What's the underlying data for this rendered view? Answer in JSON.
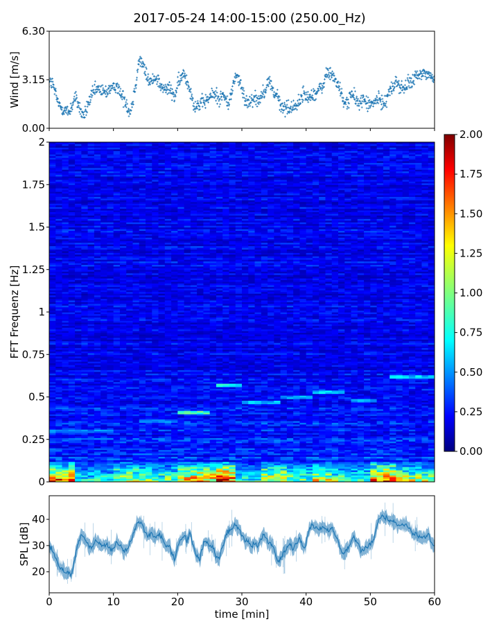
{
  "figure": {
    "title": "2017-05-24 14:00-15:00 (250.00_Hz)"
  },
  "chart_data": [
    {
      "type": "scatter",
      "panel": "wind",
      "title": "",
      "xlabel": "",
      "ylabel": "Wind [m/s]",
      "xlim": [
        0,
        60
      ],
      "ylim": [
        0,
        6.3
      ],
      "yticks": [
        0,
        3.15,
        6.3
      ],
      "ytick_labels": [
        "0.00",
        "3.15",
        "6.30"
      ],
      "marker": "+",
      "color": "#1f77b4",
      "trend_x": [
        0,
        0.5,
        1,
        1.5,
        2,
        2.5,
        3,
        3.5,
        4,
        4.5,
        5,
        5.5,
        6,
        6.5,
        7,
        7.5,
        8,
        8.5,
        9,
        9.5,
        10,
        10.5,
        11,
        11.5,
        12,
        12.5,
        13,
        13.5,
        14,
        14.5,
        15,
        15.5,
        16,
        16.5,
        17,
        17.5,
        18,
        18.5,
        19,
        19.5,
        20,
        20.5,
        21,
        21.5,
        22,
        22.5,
        23,
        23.5,
        24,
        24.5,
        25,
        25.5,
        26,
        26.5,
        27,
        27.5,
        28,
        28.5,
        29,
        29.5,
        30,
        30.5,
        31,
        31.5,
        32,
        32.5,
        33,
        33.5,
        34,
        34.5,
        35,
        35.5,
        36,
        36.5,
        37,
        37.5,
        38,
        38.5,
        39,
        39.5,
        40,
        40.5,
        41,
        41.5,
        42,
        42.5,
        43,
        43.5,
        44,
        44.5,
        45,
        45.5,
        46,
        46.5,
        47,
        47.5,
        48,
        48.5,
        49,
        49.5,
        50,
        50.5,
        51,
        51.5,
        52,
        52.5,
        53,
        53.5,
        54,
        54.5,
        55,
        55.5,
        56,
        56.5,
        57,
        57.5,
        58,
        58.5,
        59,
        59.5,
        60
      ],
      "trend_y": [
        3.0,
        2.9,
        2.2,
        1.5,
        1.3,
        1.2,
        1.0,
        1.4,
        2.0,
        1.6,
        1.0,
        0.8,
        1.5,
        2.0,
        2.4,
        2.5,
        2.5,
        2.3,
        2.4,
        2.6,
        2.5,
        2.9,
        2.3,
        2.0,
        1.7,
        1.0,
        1.7,
        3.0,
        4.5,
        4.2,
        3.6,
        3.1,
        3.0,
        3.4,
        3.1,
        2.6,
        2.5,
        2.6,
        2.4,
        2.0,
        2.8,
        3.2,
        3.6,
        3.0,
        2.5,
        1.5,
        1.5,
        1.5,
        1.7,
        1.8,
        2.0,
        2.2,
        2.2,
        1.9,
        2.2,
        1.8,
        1.6,
        2.5,
        3.5,
        3.2,
        2.5,
        1.8,
        1.7,
        1.9,
        2.0,
        1.8,
        2.1,
        2.5,
        2.9,
        3.0,
        2.2,
        2.2,
        1.4,
        1.3,
        1.4,
        1.2,
        1.5,
        1.5,
        1.7,
        2.3,
        2.0,
        2.0,
        2.3,
        2.2,
        2.5,
        2.6,
        3.4,
        3.6,
        3.5,
        3.2,
        2.8,
        2.2,
        1.5,
        1.8,
        2.2,
        2.0,
        1.7,
        1.7,
        1.9,
        1.6,
        1.5,
        1.6,
        1.9,
        1.8,
        1.6,
        1.9,
        2.5,
        2.5,
        3.2,
        2.7,
        2.6,
        2.6,
        3.0,
        3.0,
        3.3,
        3.4,
        3.5,
        3.6,
        3.5,
        3.3,
        3.3
      ]
    },
    {
      "type": "heatmap",
      "panel": "spectrogram",
      "title": "",
      "xlabel": "",
      "ylabel": "FFT Frequenz [Hz]",
      "xlim": [
        0,
        60
      ],
      "ylim": [
        0,
        2
      ],
      "yticks": [
        0,
        0.25,
        0.5,
        0.75,
        1,
        1.25,
        1.5,
        1.75,
        2
      ],
      "ytick_labels": [
        "0",
        "0.25",
        "0.5",
        "0.75",
        "1",
        "1.25",
        "1.5",
        "1.75",
        "2"
      ],
      "colormap": "jet",
      "clim": [
        0,
        2
      ],
      "colorbar_ticks": [
        "0.00",
        "0.25",
        "0.50",
        "0.75",
        "1.00",
        "1.25",
        "1.50",
        "1.75",
        "2.00"
      ],
      "background_level": 0.22,
      "low_freq_band": {
        "freq_range": [
          0,
          0.12
        ],
        "time_segments": [
          0,
          4,
          10,
          14,
          20,
          26,
          29,
          33,
          37,
          41,
          44,
          47.5,
          50,
          54,
          58,
          60
        ],
        "levels": [
          1.5,
          0.8,
          1.2,
          1.0,
          1.4,
          1.7,
          0.8,
          1.3,
          1.0,
          1.2,
          1.0,
          0.9,
          1.6,
          1.2,
          1.1
        ]
      },
      "highlight_bands": [
        {
          "t0": 26.2,
          "t1": 29.8,
          "f": 0.57,
          "level": 0.75
        },
        {
          "t0": 20.2,
          "t1": 25,
          "f": 0.41,
          "level": 0.85
        },
        {
          "t0": 41,
          "t1": 46,
          "f": 0.53,
          "level": 0.65
        },
        {
          "t0": 53.5,
          "t1": 60,
          "f": 0.62,
          "level": 0.65
        },
        {
          "t0": 30,
          "t1": 36,
          "f": 0.47,
          "level": 0.6
        },
        {
          "t0": 36,
          "t1": 41,
          "f": 0.5,
          "level": 0.55
        },
        {
          "t0": 47,
          "t1": 51,
          "f": 0.48,
          "level": 0.55
        },
        {
          "t0": 0,
          "t1": 10,
          "f": 0.3,
          "level": 0.5
        },
        {
          "t0": 14,
          "t1": 20,
          "f": 0.36,
          "level": 0.5
        }
      ]
    },
    {
      "type": "area",
      "panel": "spl",
      "title": "",
      "xlabel": "time [min]",
      "ylabel": "SPL [dB]",
      "xlim": [
        0,
        60
      ],
      "ylim": [
        12,
        49
      ],
      "yticks": [
        20,
        30,
        40
      ],
      "ytick_labels": [
        "20",
        "30",
        "40"
      ],
      "xticks": [
        0,
        10,
        20,
        30,
        40,
        50,
        60
      ],
      "xtick_labels": [
        "0",
        "10",
        "20",
        "30",
        "40",
        "50",
        "60"
      ],
      "color": "#1f77b4",
      "x": [
        0,
        0.5,
        1,
        1.5,
        2,
        2.5,
        3,
        3.5,
        4,
        4.5,
        5,
        5.5,
        6,
        6.5,
        7,
        7.5,
        8,
        8.5,
        9,
        9.5,
        10,
        10.5,
        11,
        11.5,
        12,
        12.5,
        13,
        13.5,
        14,
        14.5,
        15,
        15.5,
        16,
        16.5,
        17,
        17.5,
        18,
        18.5,
        19,
        19.5,
        20,
        20.5,
        21,
        21.5,
        22,
        22.5,
        23,
        23.5,
        24,
        24.5,
        25,
        25.5,
        26,
        26.5,
        27,
        27.5,
        28,
        28.5,
        29,
        29.5,
        30,
        30.5,
        31,
        31.5,
        32,
        32.5,
        33,
        33.5,
        34,
        34.5,
        35,
        35.5,
        36,
        36.5,
        37,
        37.5,
        38,
        38.5,
        39,
        39.5,
        40,
        40.5,
        41,
        41.5,
        42,
        42.5,
        43,
        43.5,
        44,
        44.5,
        45,
        45.5,
        46,
        46.5,
        47,
        47.5,
        48,
        48.5,
        49,
        49.5,
        50,
        50.5,
        51,
        51.5,
        52,
        52.5,
        53,
        53.5,
        54,
        54.5,
        55,
        55.5,
        56,
        56.5,
        57,
        57.5,
        58,
        58.5,
        59,
        59.5,
        60
      ],
      "y": [
        30,
        28,
        25,
        22,
        20,
        19,
        19.5,
        20,
        24,
        30,
        34,
        33,
        31,
        30,
        31,
        32,
        30,
        30,
        31,
        29,
        30,
        32,
        30,
        28,
        29,
        31,
        34,
        38,
        39,
        37,
        35,
        34,
        34,
        33,
        34,
        32,
        31,
        30,
        27,
        25,
        30,
        33,
        33,
        32,
        34,
        30,
        26,
        25,
        30,
        32,
        31,
        31,
        26,
        25,
        30,
        33,
        35,
        37,
        38,
        36,
        34,
        32,
        31,
        30,
        31,
        30,
        33,
        34,
        32,
        30,
        28,
        25,
        24,
        26,
        28,
        30,
        29,
        31,
        33,
        30,
        31,
        36,
        38,
        37,
        36,
        38,
        36,
        35,
        36,
        33,
        31,
        28,
        27,
        28,
        31,
        33,
        30,
        27,
        28,
        30,
        31,
        32,
        37,
        41,
        42,
        41,
        40,
        39,
        38,
        37,
        38,
        37,
        37,
        35,
        35,
        34,
        33,
        33,
        34,
        31,
        30
      ],
      "band_halfwidth": 2.2
    }
  ]
}
